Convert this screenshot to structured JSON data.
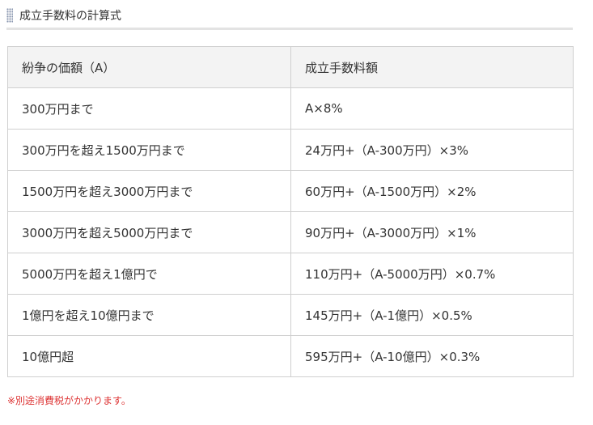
{
  "heading": {
    "title": "成立手数料の計算式"
  },
  "table": {
    "header": [
      "紛争の価額（A）",
      "成立手数料額"
    ],
    "rows": [
      [
        "300万円まで",
        "A×8%"
      ],
      [
        "300万円を超え1500万円まで",
        "24万円+（A-300万円）×3%"
      ],
      [
        "1500万円を超え3000万円まで",
        "60万円+（A-1500万円）×2%"
      ],
      [
        "3000万円を超え5000万円まで",
        "90万円+（A-3000万円）×1%"
      ],
      [
        "5000万円を超え1億円で",
        "110万円+（A-5000万円）×0.7%"
      ],
      [
        "1億円を超え10億円まで",
        "145万円+（A-1億円）×0.5%"
      ],
      [
        "10億円超",
        "595万円+（A-10億円）×0.3%"
      ]
    ]
  },
  "note": "※別途消費税がかかります。"
}
